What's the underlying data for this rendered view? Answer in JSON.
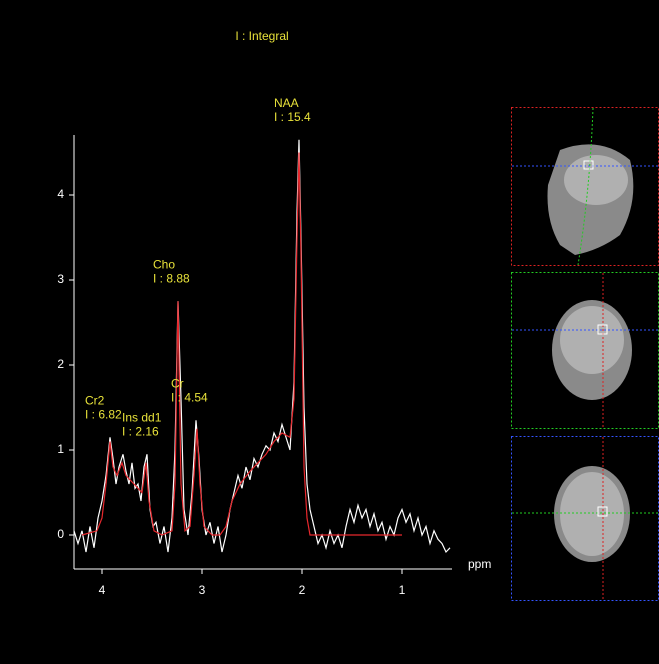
{
  "chart_data": {
    "type": "line",
    "title": "I : Integral",
    "x_label": "ppm",
    "xlim": [
      4.28,
      0.5
    ],
    "ylim": [
      -0.4,
      4.7
    ],
    "xticks": [
      4,
      3,
      2,
      1
    ],
    "yticks": [
      0,
      1,
      2,
      3,
      4
    ],
    "series": [
      {
        "color": "#ffffff",
        "x": [
          4.28,
          4.24,
          4.2,
          4.16,
          4.12,
          4.08,
          4.04,
          4.0,
          3.96,
          3.92,
          3.89,
          3.86,
          3.83,
          3.79,
          3.76,
          3.73,
          3.7,
          3.67,
          3.64,
          3.61,
          3.58,
          3.55,
          3.52,
          3.49,
          3.46,
          3.42,
          3.38,
          3.34,
          3.3,
          3.27,
          3.24,
          3.21,
          3.18,
          3.14,
          3.1,
          3.06,
          3.03,
          3.0,
          2.96,
          2.92,
          2.88,
          2.84,
          2.8,
          2.76,
          2.72,
          2.68,
          2.64,
          2.6,
          2.56,
          2.52,
          2.48,
          2.44,
          2.4,
          2.36,
          2.32,
          2.28,
          2.24,
          2.2,
          2.16,
          2.12,
          2.08,
          2.05,
          2.03,
          2.01,
          1.98,
          1.95,
          1.92,
          1.88,
          1.84,
          1.8,
          1.76,
          1.72,
          1.68,
          1.64,
          1.6,
          1.56,
          1.52,
          1.48,
          1.44,
          1.4,
          1.36,
          1.32,
          1.28,
          1.24,
          1.2,
          1.16,
          1.12,
          1.08,
          1.04,
          1.0,
          0.96,
          0.92,
          0.88,
          0.84,
          0.8,
          0.76,
          0.72,
          0.68,
          0.64,
          0.6,
          0.56,
          0.52
        ],
        "values": [
          0.05,
          -0.1,
          0.05,
          -0.2,
          0.1,
          -0.15,
          0.2,
          0.4,
          0.7,
          1.15,
          0.9,
          0.6,
          0.8,
          0.95,
          0.75,
          0.6,
          0.85,
          0.55,
          0.6,
          0.4,
          0.8,
          0.95,
          0.3,
          0.1,
          0.15,
          -0.1,
          0.1,
          -0.2,
          0.2,
          1.0,
          2.75,
          1.6,
          0.3,
          0.0,
          0.5,
          1.35,
          0.9,
          0.3,
          0.0,
          0.15,
          -0.1,
          0.1,
          -0.2,
          0.0,
          0.3,
          0.5,
          0.7,
          0.55,
          0.8,
          0.65,
          0.9,
          0.8,
          0.95,
          1.05,
          1.0,
          1.2,
          1.1,
          1.3,
          1.15,
          1.0,
          1.8,
          3.8,
          4.65,
          3.5,
          1.5,
          0.6,
          0.3,
          0.1,
          -0.1,
          0.0,
          -0.15,
          0.05,
          -0.1,
          0.0,
          -0.15,
          0.1,
          0.3,
          0.15,
          0.35,
          0.2,
          0.3,
          0.1,
          0.25,
          0.05,
          0.15,
          -0.05,
          0.1,
          0.0,
          0.2,
          0.3,
          0.15,
          0.25,
          0.05,
          0.2,
          0.0,
          0.1,
          -0.1,
          0.05,
          -0.05,
          -0.1,
          -0.2,
          -0.15
        ]
      },
      {
        "color": "#e8282d",
        "x": [
          4.2,
          4.05,
          4.0,
          3.96,
          3.92,
          3.89,
          3.85,
          3.8,
          3.76,
          3.72,
          3.68,
          3.64,
          3.6,
          3.56,
          3.53,
          3.48,
          3.4,
          3.3,
          3.27,
          3.24,
          3.21,
          3.17,
          3.12,
          3.08,
          3.05,
          3.02,
          2.98,
          2.9,
          2.82,
          2.76,
          2.7,
          2.62,
          2.52,
          2.44,
          2.36,
          2.28,
          2.2,
          2.12,
          2.08,
          2.05,
          2.03,
          2.01,
          1.98,
          1.95,
          1.92,
          1.0
        ],
        "values": [
          0.0,
          0.05,
          0.2,
          0.6,
          1.1,
          0.8,
          0.7,
          0.85,
          0.7,
          0.65,
          0.6,
          0.55,
          0.5,
          0.85,
          0.4,
          0.05,
          0.0,
          0.05,
          0.6,
          2.75,
          0.6,
          0.05,
          0.1,
          0.7,
          1.25,
          0.6,
          0.1,
          0.0,
          0.0,
          0.1,
          0.4,
          0.6,
          0.75,
          0.85,
          0.95,
          1.1,
          1.2,
          1.15,
          1.6,
          3.5,
          4.5,
          3.3,
          0.8,
          0.2,
          0.0,
          0.0
        ]
      }
    ],
    "annotations": [
      {
        "label": "NAA",
        "text": "I : 15.4",
        "x": 2.03,
        "y": 4.65
      },
      {
        "label": "Cho",
        "text": "I : 8.88",
        "x": 3.24,
        "y": 2.75
      },
      {
        "label": "Cr",
        "text": "I : 4.54",
        "x": 3.06,
        "y": 1.35
      },
      {
        "label": "Cr2",
        "text": "I : 6.82",
        "x": 3.92,
        "y": 1.15
      },
      {
        "label": "Ins dd1",
        "text": "I : 2.16",
        "x": 3.55,
        "y": 0.95
      }
    ]
  }
}
